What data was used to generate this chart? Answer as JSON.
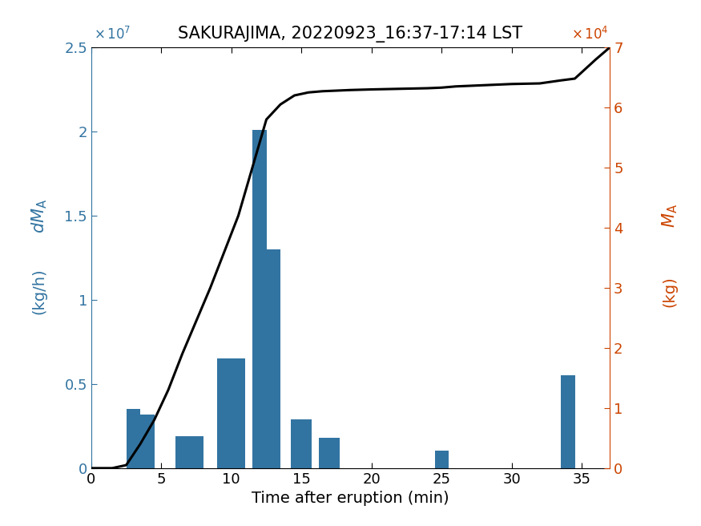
{
  "title": "SAKURAJIMA, 20220923_16:37-17:14 LST",
  "xlabel": "Time after eruption (min)",
  "bar_positions": [
    3,
    4,
    7,
    10,
    12,
    13,
    15,
    17,
    25,
    34
  ],
  "bar_heights": [
    3500000,
    3200000,
    1900000,
    6500000,
    20100000,
    13000000,
    2900000,
    1800000,
    1050000,
    5500000
  ],
  "bar_widths": [
    1,
    1,
    2,
    2,
    1,
    1,
    1.5,
    1.5,
    1,
    1
  ],
  "bar_color": "#3274A1",
  "line_x": [
    0,
    1.5,
    2.5,
    3.5,
    4.5,
    5.5,
    6.5,
    7.5,
    8.5,
    9.5,
    10.5,
    11.5,
    12.5,
    13.5,
    14.5,
    15.5,
    16.5,
    17.5,
    18.5,
    20,
    22,
    24,
    25,
    26,
    27,
    28,
    30,
    32,
    33.5,
    34.5,
    36,
    37
  ],
  "line_y": [
    0,
    0,
    500,
    4000,
    8000,
    13000,
    19000,
    24500,
    30000,
    36000,
    42000,
    50000,
    58000,
    60500,
    62000,
    62500,
    62700,
    62800,
    62900,
    63000,
    63100,
    63200,
    63300,
    63500,
    63600,
    63700,
    63900,
    64000,
    64500,
    64800,
    68000,
    70000
  ],
  "line_color": "#000000",
  "ylim_left": [
    0,
    25000000
  ],
  "ylim_right": [
    0,
    70000
  ],
  "xlim": [
    0,
    37
  ],
  "xticks": [
    0,
    5,
    10,
    15,
    20,
    25,
    30,
    35
  ],
  "yticks_left": [
    0,
    5000000,
    10000000,
    15000000,
    20000000,
    25000000
  ],
  "yticks_right": [
    0,
    10000,
    20000,
    30000,
    40000,
    50000,
    60000,
    70000
  ],
  "ytick_labels_left": [
    "0",
    "0.5",
    "1",
    "1.5",
    "2",
    "2.5"
  ],
  "ytick_labels_right": [
    "0",
    "1",
    "2",
    "3",
    "4",
    "5",
    "6",
    "7"
  ],
  "left_axis_color": "#3274A1",
  "right_axis_color": "#CC4400",
  "title_fontsize": 15,
  "label_fontsize": 14,
  "tick_fontsize": 13
}
